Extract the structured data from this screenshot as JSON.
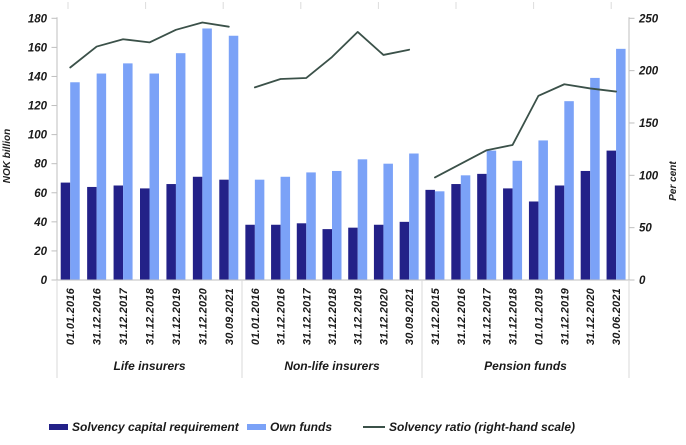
{
  "chart_data": {
    "type": "bar",
    "title": "",
    "left_axis": {
      "label": "NOK billion",
      "ticks": [
        0,
        20,
        40,
        60,
        80,
        100,
        120,
        140,
        160,
        180
      ],
      "range": [
        0,
        180
      ]
    },
    "right_axis": {
      "label": "Per cent",
      "ticks": [
        0,
        50,
        100,
        150,
        200,
        250
      ],
      "range": [
        0,
        250
      ]
    },
    "legend_position": "bottom",
    "grid": "off",
    "series": [
      {
        "name": "Solvency capital requirement",
        "type": "bar",
        "axis": "left",
        "color": "#232188",
        "key": "solvency_capital_requirement"
      },
      {
        "name": "Own funds",
        "type": "bar",
        "axis": "left",
        "color": "#7BA2F7",
        "key": "own_funds"
      },
      {
        "name": "Solvency ratio (right-hand scale)",
        "type": "line",
        "axis": "right",
        "color": "#3B5149",
        "key": "solvency_ratio"
      }
    ],
    "groups": [
      {
        "label": "Life insurers",
        "categories": [
          "01.01.2016",
          "31.12.2016",
          "31.12.2017",
          "31.12.2018",
          "31.12.2019",
          "31.12.2020",
          "30.09.2021"
        ],
        "solvency_capital_requirement": [
          67,
          64,
          65,
          63,
          66,
          71,
          69
        ],
        "own_funds": [
          136,
          142,
          149,
          142,
          156,
          173,
          168
        ],
        "solvency_ratio": [
          203,
          223,
          230,
          227,
          239,
          246,
          242
        ]
      },
      {
        "label": "Non-life insurers",
        "categories": [
          "01.01.2016",
          "31.12.2016",
          "31.12.2017",
          "31.12.2018",
          "31.12.2019",
          "31.12.2020",
          "30.09.2021"
        ],
        "solvency_capital_requirement": [
          38,
          38,
          39,
          35,
          36,
          38,
          40
        ],
        "own_funds": [
          69,
          71,
          74,
          75,
          83,
          80,
          87
        ],
        "solvency_ratio": [
          184,
          192,
          193,
          213,
          237,
          215,
          220
        ]
      },
      {
        "label": "Pension funds",
        "categories": [
          "31.12.2015",
          "31.12.2016",
          "31.12.2017",
          "31.12.2018",
          "01.01.2019",
          "31.12.2019",
          "31.12.2020",
          "30.06.2021"
        ],
        "solvency_capital_requirement": [
          62,
          66,
          73,
          63,
          54,
          65,
          75,
          89
        ],
        "own_funds": [
          61,
          72,
          89,
          82,
          96,
          123,
          139,
          159
        ],
        "solvency_ratio": [
          98,
          111,
          124,
          129,
          176,
          187,
          183,
          180
        ]
      }
    ]
  },
  "colors": {
    "background": "#FFFFFF",
    "axis_line": "#BFBFBF",
    "separator_line": "#D9D9D9",
    "top_tick": "#DCDCDC",
    "text": "#1A1A1A"
  }
}
